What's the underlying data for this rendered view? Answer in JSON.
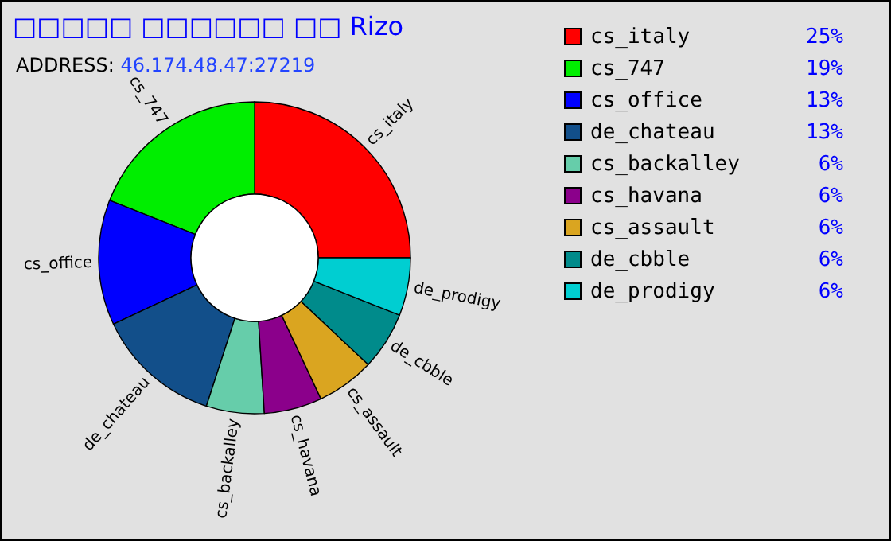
{
  "chart_data": {
    "type": "donut",
    "title": "□□□□□ □□□□□□ □□ Rizo",
    "subtitle": "ADDRESS: 46.174.48.47:27219",
    "categories": [
      "cs_italy",
      "cs_747",
      "cs_office",
      "de_chateau",
      "cs_backalley",
      "cs_havana",
      "cs_assault",
      "de_cbble",
      "de_prodigy"
    ],
    "values": [
      25,
      19,
      13,
      13,
      6,
      6,
      6,
      6,
      6
    ],
    "colors": [
      "#ff0000",
      "#00ee00",
      "#0000ff",
      "#124f8a",
      "#66cdaa",
      "#8b008b",
      "#daa520",
      "#008b8b",
      "#00ced1"
    ],
    "value_labels": [
      "25%",
      "19%",
      "13%",
      "13%",
      "6%",
      "6%",
      "6%",
      "6%",
      "6%"
    ],
    "legend": "top right"
  }
}
